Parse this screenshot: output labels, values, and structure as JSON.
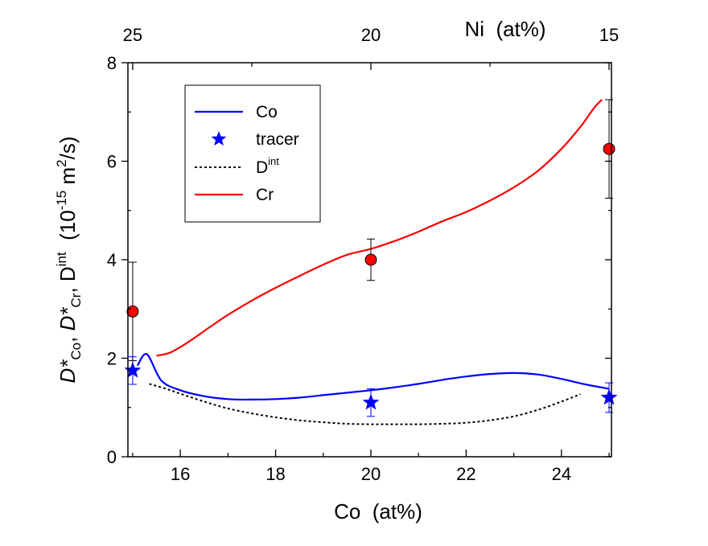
{
  "chart_data": {
    "type": "line",
    "xlabel": "Co  (at%)",
    "top_xlabel": "Ni  (at%)",
    "ylabel_parts": {
      "d1": "D*",
      "sub1": "Co",
      "sep1": ", ",
      "d2": "D*",
      "sub2": "Cr",
      "sep2": ", D",
      "sup3": "int",
      "units_open": "  (10",
      "exp": "-15",
      "units_mid": " m",
      "exp2": "2",
      "units_close": "/s)"
    },
    "xlim": [
      14.9,
      25.05
    ],
    "ylim": [
      0,
      8
    ],
    "x_ticks": [
      16,
      18,
      20,
      22,
      24
    ],
    "x_tick_labels": [
      "16",
      "18",
      "20",
      "22",
      "24"
    ],
    "y_ticks": [
      0,
      2,
      4,
      6,
      8
    ],
    "y_tick_labels": [
      "0",
      "2",
      "4",
      "6",
      "8"
    ],
    "top_ticks": [
      15,
      20,
      25
    ],
    "top_tick_labels": [
      "25",
      "20",
      "15"
    ],
    "legend": {
      "position": "top-left",
      "entries": [
        {
          "label": "Co",
          "style": "line",
          "color": "#0000ff"
        },
        {
          "label": "tracer",
          "style": "star",
          "color": "#0000ff"
        },
        {
          "label_main": "D",
          "label_sup": "int",
          "style": "dotted",
          "color": "#000000"
        },
        {
          "label": "Cr",
          "style": "line",
          "color": "#ff0000"
        }
      ]
    },
    "series": [
      {
        "name": "Co",
        "kind": "line",
        "color": "#0000ff",
        "x": [
          15.1,
          15.3,
          15.6,
          16.0,
          16.5,
          17.0,
          17.5,
          18.0,
          18.5,
          19.0,
          19.5,
          20.0,
          20.5,
          21.0,
          21.5,
          22.0,
          22.5,
          23.0,
          23.5,
          24.0,
          24.5,
          25.0
        ],
        "y": [
          1.85,
          2.08,
          1.55,
          1.35,
          1.23,
          1.17,
          1.16,
          1.17,
          1.2,
          1.25,
          1.3,
          1.35,
          1.41,
          1.48,
          1.56,
          1.63,
          1.68,
          1.7,
          1.67,
          1.58,
          1.47,
          1.38
        ]
      },
      {
        "name": "Cr",
        "kind": "line",
        "color": "#ff0000",
        "x": [
          15.5,
          15.8,
          16.2,
          16.6,
          17.0,
          17.5,
          18.0,
          18.5,
          19.0,
          19.5,
          20.0,
          20.5,
          21.0,
          21.5,
          22.0,
          22.5,
          23.0,
          23.5,
          24.0,
          24.4,
          24.7,
          24.85
        ],
        "y": [
          2.05,
          2.12,
          2.35,
          2.62,
          2.88,
          3.17,
          3.43,
          3.67,
          3.9,
          4.1,
          4.22,
          4.38,
          4.57,
          4.78,
          4.97,
          5.2,
          5.47,
          5.8,
          6.25,
          6.7,
          7.1,
          7.25
        ]
      },
      {
        "name": "D_int",
        "kind": "dotted",
        "color": "#000000",
        "x": [
          15.35,
          15.7,
          16.0,
          16.5,
          17.0,
          17.5,
          18.0,
          18.5,
          19.0,
          19.5,
          20.0,
          20.5,
          21.0,
          21.5,
          22.0,
          22.5,
          23.0,
          23.5,
          24.0,
          24.4
        ],
        "y": [
          1.48,
          1.38,
          1.28,
          1.12,
          0.98,
          0.88,
          0.8,
          0.74,
          0.7,
          0.67,
          0.66,
          0.66,
          0.66,
          0.67,
          0.69,
          0.74,
          0.82,
          0.95,
          1.12,
          1.27
        ]
      },
      {
        "name": "tracer Co",
        "kind": "star",
        "color": "#0000ff",
        "x": [
          15.0,
          20.0,
          25.0
        ],
        "y": [
          1.75,
          1.1,
          1.2
        ],
        "err": [
          0.28,
          0.28,
          0.3
        ]
      },
      {
        "name": "tracer Cr",
        "kind": "circle",
        "color": "#ff0000",
        "x": [
          15.0,
          20.0,
          25.0
        ],
        "y": [
          2.95,
          4.0,
          6.25
        ],
        "err": [
          1.0,
          0.42,
          1.0
        ]
      }
    ]
  }
}
